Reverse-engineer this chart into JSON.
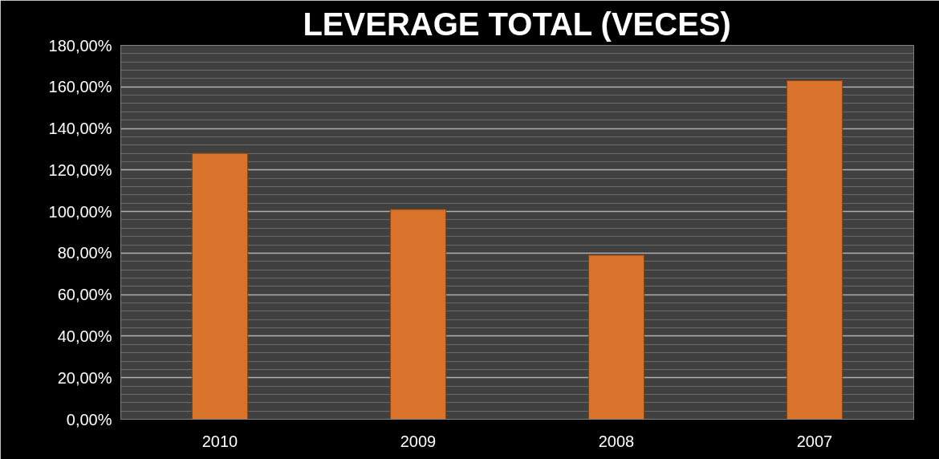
{
  "chart_data": {
    "type": "bar",
    "title": "LEVERAGE TOTAL (VECES)",
    "categories": [
      "2010",
      "2009",
      "2008",
      "2007"
    ],
    "values": [
      128,
      101,
      79,
      163
    ],
    "color": "#d9722a",
    "ylim": [
      0,
      180
    ],
    "yticks": [
      {
        "value": 0,
        "label": "0,00%"
      },
      {
        "value": 20,
        "label": "20,00%"
      },
      {
        "value": 40,
        "label": "40,00%"
      },
      {
        "value": 60,
        "label": "60,00%"
      },
      {
        "value": 80,
        "label": "80,00%"
      },
      {
        "value": 100,
        "label": "100,00%"
      },
      {
        "value": 120,
        "label": "120,00%"
      },
      {
        "value": 140,
        "label": "140,00%"
      },
      {
        "value": 160,
        "label": "160,00%"
      },
      {
        "value": 180,
        "label": "180,00%"
      }
    ],
    "grid": "y"
  }
}
